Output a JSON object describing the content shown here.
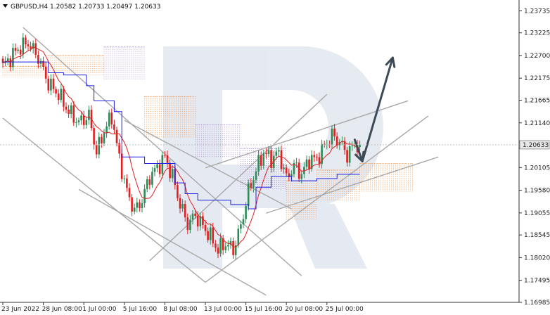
{
  "header": {
    "symbol_line": "GBPUSD,H4  1.20582 1.20733 1.20497 1.20633"
  },
  "colors": {
    "bull": "#2e8b57",
    "bear": "#e02020",
    "kijun": "#1f1fe0",
    "tenkan": "#e02020",
    "cloud_orange": "#f0a060",
    "cloud_purple": "#b89ad6",
    "trendline": "#a8a8a8",
    "arrow": "#3d4b59",
    "price_tag_bg": "#e8e8e8",
    "watermark": "#dde4ee"
  },
  "chart_data": {
    "type": "candlestick",
    "title": "GBPUSD,H4",
    "ohlc_readout": {
      "open": 1.20582,
      "high": 1.20733,
      "low": 1.20497,
      "close": 1.20633
    },
    "current_price_label": "1.20633",
    "y_ticks": [
      "1.23735",
      "1.23225",
      "1.22700",
      "1.22175",
      "1.21665",
      "1.21140",
      "1.20105",
      "1.19580",
      "1.19055",
      "1.18545",
      "1.18020",
      "1.17495",
      "1.16985"
    ],
    "y_tick_values": [
      1.23735,
      1.23225,
      1.227,
      1.22175,
      1.21665,
      1.2114,
      1.20105,
      1.1958,
      1.19055,
      1.18545,
      1.1802,
      1.17495,
      1.16985
    ],
    "ylim": [
      1.16985,
      1.23985
    ],
    "x_ticks": [
      "23 Jun 2022",
      "28 Jun 08:00",
      "1 Jul 00:00",
      "5 Jul 16:00",
      "8 Jul 08:00",
      "13 Jul 00:00",
      "15 Jul 16:00",
      "20 Jul 08:00",
      "25 Jul 00:00"
    ],
    "x_tick_bar_index": [
      0,
      16,
      32,
      48,
      64,
      80,
      96,
      112,
      128
    ],
    "bar_count": 142,
    "close_path_anchors": [
      [
        0,
        1.2245
      ],
      [
        6,
        1.2285
      ],
      [
        10,
        1.23
      ],
      [
        14,
        1.2265
      ],
      [
        18,
        1.2205
      ],
      [
        22,
        1.218
      ],
      [
        26,
        1.214
      ],
      [
        30,
        1.2115
      ],
      [
        34,
        1.213
      ],
      [
        37,
        1.2045
      ],
      [
        40,
        1.2095
      ],
      [
        43,
        1.213
      ],
      [
        46,
        1.203
      ],
      [
        49,
        1.1955
      ],
      [
        52,
        1.191
      ],
      [
        55,
        1.1935
      ],
      [
        58,
        1.199
      ],
      [
        61,
        1.201
      ],
      [
        64,
        1.2035
      ],
      [
        67,
        1.199
      ],
      [
        70,
        1.1925
      ],
      [
        73,
        1.188
      ],
      [
        76,
        1.19
      ],
      [
        79,
        1.1875
      ],
      [
        82,
        1.185
      ],
      [
        85,
        1.182
      ],
      [
        88,
        1.1835
      ],
      [
        91,
        1.182
      ],
      [
        94,
        1.1875
      ],
      [
        97,
        1.1955
      ],
      [
        100,
        1.2005
      ],
      [
        103,
        1.2045
      ],
      [
        106,
        1.203
      ],
      [
        109,
        1.2045
      ],
      [
        112,
        1.1985
      ],
      [
        115,
        1.2015
      ],
      [
        118,
        1.1995
      ],
      [
        121,
        1.203
      ],
      [
        124,
        1.203
      ],
      [
        127,
        1.206
      ],
      [
        130,
        1.2085
      ],
      [
        133,
        1.207
      ],
      [
        136,
        1.204
      ],
      [
        139,
        1.2065
      ],
      [
        141,
        1.20633
      ]
    ],
    "kijun_steps": [
      [
        0,
        1.2255
      ],
      [
        12,
        1.2255
      ],
      [
        18,
        1.223
      ],
      [
        24,
        1.2225
      ],
      [
        33,
        1.22
      ],
      [
        36,
        1.2165
      ],
      [
        44,
        1.214
      ],
      [
        47,
        1.2035
      ],
      [
        56,
        1.202
      ],
      [
        68,
        1.1975
      ],
      [
        72,
        1.195
      ],
      [
        77,
        1.1935
      ],
      [
        90,
        1.1925
      ],
      [
        97,
        1.1915
      ],
      [
        100,
        1.1965
      ],
      [
        106,
        1.199
      ],
      [
        114,
        1.198
      ],
      [
        124,
        1.1985
      ],
      [
        132,
        1.1995
      ],
      [
        141,
        1.1995
      ]
    ],
    "cloud": [
      {
        "from": 0,
        "to": 18,
        "top": 1.2245,
        "bottom": 1.222,
        "tone": "orange"
      },
      {
        "from": 18,
        "to": 40,
        "top": 1.227,
        "bottom": 1.2225,
        "tone": "orange"
      },
      {
        "from": 40,
        "to": 56,
        "top": 1.229,
        "bottom": 1.2215,
        "tone": "purple"
      },
      {
        "from": 56,
        "to": 76,
        "top": 1.2175,
        "bottom": 1.208,
        "tone": "orange"
      },
      {
        "from": 76,
        "to": 94,
        "top": 1.211,
        "bottom": 1.2035,
        "tone": "purple"
      },
      {
        "from": 94,
        "to": 112,
        "top": 1.2055,
        "bottom": 1.196,
        "tone": "purple"
      },
      {
        "from": 112,
        "to": 124,
        "top": 1.198,
        "bottom": 1.189,
        "tone": "orange"
      },
      {
        "from": 124,
        "to": 141,
        "top": 1.2005,
        "bottom": 1.1935,
        "tone": "orange"
      },
      {
        "from": 141,
        "to": 162,
        "top": 1.202,
        "bottom": 1.1955,
        "tone": "orange"
      }
    ],
    "trend_lines": [
      [
        [
          0,
          1.2125
        ],
        [
          80,
          1.1745
        ]
      ],
      [
        [
          8,
          1.2335
        ],
        [
          118,
          1.176
        ]
      ],
      [
        [
          30,
          1.196
        ],
        [
          104,
          1.1715
        ]
      ],
      [
        [
          48,
          1.212
        ],
        [
          114,
          1.1915
        ]
      ],
      [
        [
          80,
          1.201
        ],
        [
          160,
          1.2165
        ]
      ],
      [
        [
          58,
          1.1795
        ],
        [
          128,
          1.218
        ]
      ],
      [
        [
          80,
          1.1745
        ],
        [
          168,
          1.213
        ]
      ],
      [
        [
          104,
          1.1905
        ],
        [
          172,
          1.2035
        ]
      ]
    ],
    "forecast_arrows": [
      [
        [
          139,
          1.2075
        ],
        [
          142,
          1.2025
        ]
      ],
      [
        [
          142,
          1.2025
        ],
        [
          154,
          1.2265
        ]
      ]
    ]
  }
}
